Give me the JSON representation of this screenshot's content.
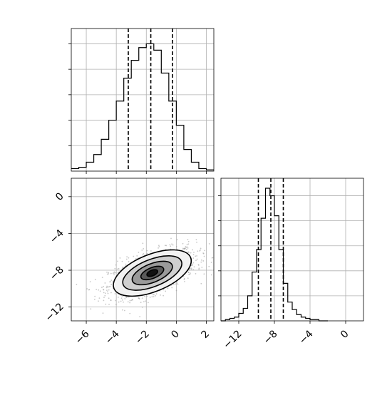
{
  "chart_data": [
    {
      "type": "histogram",
      "panel": "top-left",
      "variable": "x",
      "xlim": [
        -7,
        2.5
      ],
      "bin_edges": [
        -7.0,
        -6.5,
        -6.0,
        -5.5,
        -5.0,
        -4.5,
        -4.0,
        -3.5,
        -3.0,
        -2.5,
        -2.0,
        -1.5,
        -1.0,
        -0.5,
        0.0,
        0.5,
        1.0,
        1.5,
        2.0,
        2.5
      ],
      "counts": [
        2,
        3,
        7,
        13,
        25,
        40,
        55,
        73,
        87,
        97,
        100,
        95,
        77,
        55,
        36,
        17,
        7,
        2,
        1
      ],
      "ylim": [
        0,
        112
      ],
      "quantile_lines": [
        -3.2,
        -1.7,
        -0.25
      ],
      "grid": true
    },
    {
      "type": "contour",
      "panel": "bottom-left",
      "xlim": [
        -7,
        2.5
      ],
      "ylim": [
        -13.5,
        2
      ],
      "x_ticks": [
        -6,
        -4,
        -2,
        0,
        2
      ],
      "x_tick_labels": [
        "−6",
        "−4",
        "−2",
        "0",
        "2"
      ],
      "y_ticks": [
        0,
        -4,
        -8,
        -12
      ],
      "y_tick_labels": [
        "0",
        "−4",
        "−8",
        "−12"
      ],
      "center": [
        -1.6,
        -8.3
      ],
      "correlation": "positive",
      "grid": true
    },
    {
      "type": "histogram",
      "panel": "bottom-right",
      "variable": "y",
      "xlim": [
        -14,
        2
      ],
      "bin_edges": [
        -14.0,
        -13.5,
        -13.0,
        -12.5,
        -12.0,
        -11.5,
        -11.0,
        -10.5,
        -10.0,
        -9.5,
        -9.0,
        -8.5,
        -8.0,
        -7.5,
        -7.0,
        -6.5,
        -6.0,
        -5.5,
        -5.0,
        -4.5,
        -4.0,
        -3.5,
        -3.0,
        -2.5,
        -2.0
      ],
      "counts": [
        0,
        1,
        2,
        3,
        6,
        10,
        20,
        39,
        57,
        82,
        106,
        100,
        84,
        57,
        30,
        15,
        9,
        5,
        3,
        2,
        1,
        1,
        0,
        0
      ],
      "ylim": [
        0,
        114
      ],
      "quantile_lines": [
        -9.8,
        -8.4,
        -7.0
      ],
      "x_ticks": [
        -12,
        -8,
        -4,
        0
      ],
      "x_tick_labels": [
        "−12",
        "−8",
        "−4",
        "0"
      ],
      "grid": true
    }
  ]
}
